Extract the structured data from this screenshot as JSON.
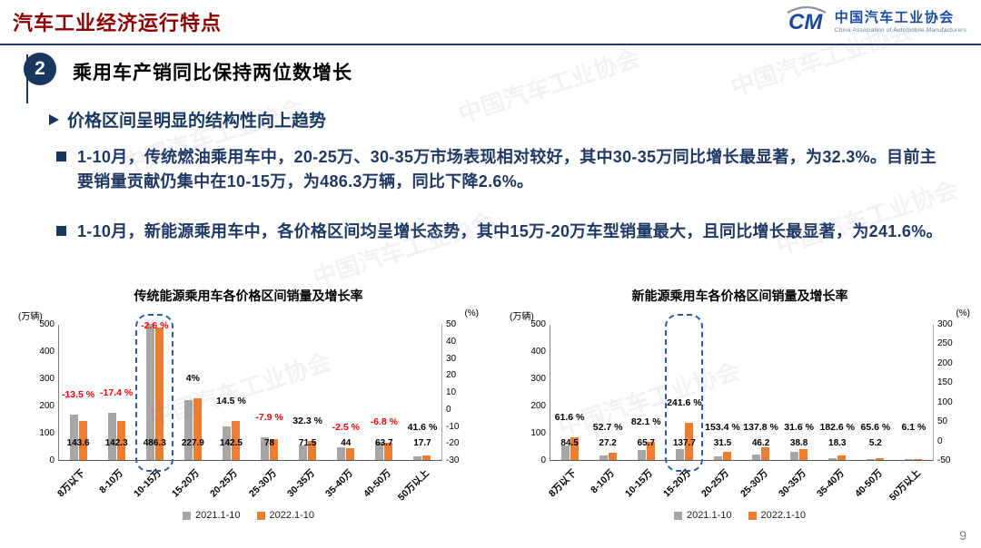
{
  "slide": {
    "title": "汽车工业经济运行特点",
    "page_number": "9",
    "watermark_text": "中国汽车工业协会",
    "logo": {
      "monogram": "CM",
      "org_cn": "中国汽车工业协会",
      "org_en": "China Association of Automobile Manufacturers"
    },
    "section": {
      "badge": "2",
      "heading": "乘用车产销同比保持两位数增长",
      "subheading": "价格区间呈明显的结构性向上趋势",
      "bullets": [
        "1-10月，传统燃油乘用车中，20-25万、30-35万市场表现相对较好，其中30-35万同比增长最显著，为32.3%。目前主要销量贡献仍集中在10-15万，为486.3万辆，同比下降2.6%。",
        "1-10月，新能源乘用车中，各价格区间均呈增长态势，其中15万-20万车型销量最大，且同比增长最显著，为241.6%。"
      ]
    }
  },
  "legend": [
    {
      "name": "2021.1-10",
      "color": "#A6A6A6"
    },
    {
      "name": "2022.1-10",
      "color": "#ED7D31"
    }
  ],
  "colors": {
    "title_red": "#8B0000",
    "navy": "#1F3864",
    "badge_navy": "#17375E",
    "bar_gray": "#A6A6A6",
    "bar_orange": "#ED7D31",
    "negative_red": "#FF0000",
    "positive_black": "#000000",
    "highlight_blue": "#2E5BA8",
    "logo_blue": "#1A4B9B"
  },
  "chart_data": [
    {
      "type": "bar",
      "title": "传统能源乘用车各价格区间销量及增长率",
      "unit_left": "(万辆)",
      "unit_right": "(%)",
      "categories": [
        "8万以下",
        "8-10万",
        "10-15万",
        "15-20万",
        "20-25万",
        "25-30万",
        "30-35万",
        "35-40万",
        "40-50万",
        "50万以上"
      ],
      "series": [
        {
          "name": "2021.1-10",
          "values": [
            166.0,
            172.3,
            499.3,
            219.1,
            124.5,
            84.7,
            54.0,
            45.1,
            68.3,
            12.5
          ]
        },
        {
          "name": "2022.1-10",
          "values": [
            143.6,
            142.3,
            486.3,
            227.9,
            142.5,
            78,
            71.5,
            44,
            63.7,
            17.7
          ]
        }
      ],
      "value_labels": [
        "143.6",
        "142.3",
        "486.3",
        "227.9",
        "142.5",
        "78",
        "71.5",
        "44",
        "63.7",
        "17.7"
      ],
      "growth_labels": [
        "-13.5 %",
        "-17.4 %",
        "-2.6 %",
        "4%",
        "14.5 %",
        "-7.9 %",
        "32.3 %",
        "-2.5 %",
        "-6.8 %",
        "41.6 %"
      ],
      "left_axis": {
        "min": 0,
        "max": 500,
        "ticks": [
          500,
          400,
          300,
          200,
          100,
          0
        ]
      },
      "right_axis": {
        "ticks": [
          50,
          40,
          30,
          20,
          10,
          0,
          -10,
          -20,
          -30
        ]
      },
      "highlight_index": 2,
      "legend_position": "bottom"
    },
    {
      "type": "bar",
      "title": "新能源乘用车各价格区间销量及增长率",
      "unit_left": "(万辆)",
      "unit_right": "(%)",
      "categories": [
        "8万以下",
        "8-10万",
        "10-15万",
        "15-20万",
        "20-25万",
        "25-30万",
        "30-35万",
        "35-40万",
        "40-50万",
        "50万以上"
      ],
      "series": [
        {
          "name": "2021.1-10",
          "values": [
            52.3,
            17.8,
            36.1,
            40.3,
            12.4,
            19.4,
            29.5,
            6.5,
            3.1,
            2.3
          ]
        },
        {
          "name": "2022.1-10",
          "values": [
            84.5,
            27.2,
            65.7,
            137.7,
            31.5,
            46.2,
            38.8,
            18.3,
            5.2,
            2.4
          ]
        }
      ],
      "value_labels": [
        "84.5",
        "27.2",
        "65.7",
        "137.7",
        "31.5",
        "46.2",
        "38.8",
        "18.3",
        "5.2",
        ""
      ],
      "growth_labels": [
        "61.6 %",
        "52.7 %",
        "82.1 %",
        "241.6 %",
        "153.4 %",
        "137.8 %",
        "31.6 %",
        "182.6 %",
        "65.6 %",
        "6.1 %"
      ],
      "left_axis": {
        "min": 0,
        "max": 500,
        "ticks": [
          500,
          400,
          300,
          200,
          100,
          0
        ]
      },
      "right_axis": {
        "ticks": [
          300,
          250,
          200,
          150,
          100,
          50,
          0,
          -50
        ]
      },
      "highlight_index": 3,
      "legend_position": "bottom"
    }
  ]
}
